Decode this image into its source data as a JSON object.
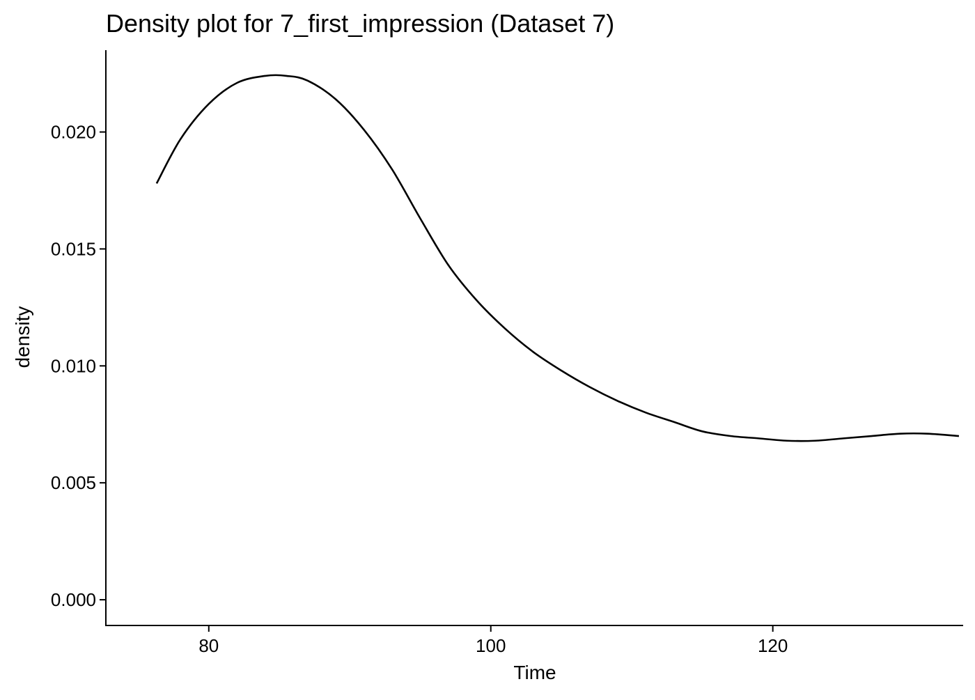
{
  "chart_data": {
    "type": "line",
    "title": "Density plot for 7_first_impression (Dataset 7)",
    "xlabel": "Time",
    "ylabel": "density",
    "xlim": [
      72.7,
      133.5
    ],
    "ylim": [
      -0.0011,
      0.0235
    ],
    "xticks": [
      80,
      100,
      120
    ],
    "xtick_labels": [
      "80",
      "100",
      "120"
    ],
    "yticks": [
      0,
      0.005,
      0.01,
      0.015,
      0.02
    ],
    "ytick_labels": [
      "0.000",
      "0.005",
      "0.010",
      "0.015",
      "0.020"
    ],
    "grid": false,
    "legend": "none",
    "line_color": "#000000",
    "series": [
      {
        "x": [
          76.3,
          78,
          80,
          82,
          84,
          85.5,
          87,
          89,
          91,
          93,
          95,
          97,
          99,
          101,
          103,
          105,
          107,
          109,
          111,
          113,
          115,
          117,
          119,
          121,
          123,
          125,
          127,
          129,
          131,
          133.2
        ],
        "y": [
          0.0178,
          0.0197,
          0.0212,
          0.0221,
          0.0224,
          0.0224,
          0.0222,
          0.0214,
          0.0201,
          0.0184,
          0.0163,
          0.0143,
          0.0128,
          0.0116,
          0.0106,
          0.0098,
          0.0091,
          0.0085,
          0.008,
          0.0076,
          0.0072,
          0.007,
          0.0069,
          0.0068,
          0.0068,
          0.0069,
          0.007,
          0.0071,
          0.0071,
          0.007
        ]
      }
    ]
  }
}
